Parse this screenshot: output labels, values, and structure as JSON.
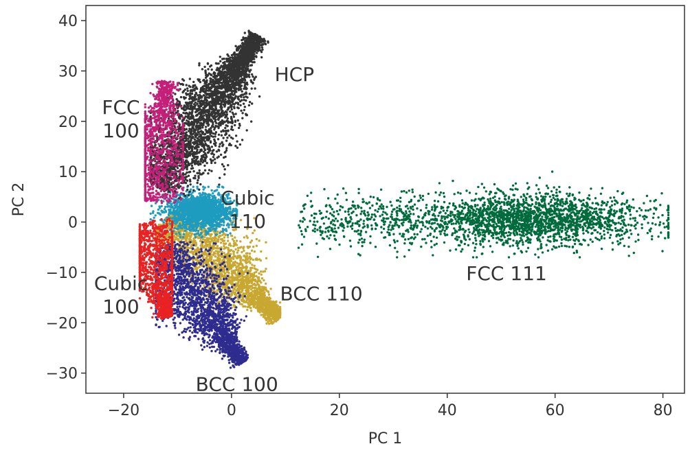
{
  "chart_data": {
    "type": "scatter",
    "title": "",
    "xlabel": "PC 1",
    "ylabel": "PC 2",
    "xlim": [
      -27,
      84
    ],
    "ylim": [
      -34,
      43
    ],
    "xticks": [
      -20,
      0,
      20,
      40,
      60,
      80
    ],
    "yticks": [
      -30,
      -20,
      -10,
      0,
      10,
      20,
      30,
      40
    ],
    "xtick_labels": [
      "−20",
      "0",
      "20",
      "40",
      "60",
      "80"
    ],
    "ytick_labels": [
      "−30",
      "−20",
      "−10",
      "0",
      "10",
      "20",
      "30",
      "40"
    ],
    "grid": false,
    "series": [
      {
        "color": "#006b3c",
        "count": 2600,
        "shape": "ellipse",
        "center": [
          55,
          0.5
        ],
        "x_range": [
          10,
          81
        ],
        "y_range": [
          -7,
          10
        ],
        "label_lines": [
          "FCC 111"
        ]
      },
      {
        "color": "#c8a831",
        "count": 2400,
        "shape": "band",
        "start": [
          -12,
          1
        ],
        "end": [
          9,
          -19
        ],
        "x_range": [
          -14,
          9
        ],
        "y_range": [
          -21,
          2
        ],
        "label_lines": [
          "BCC 110"
        ]
      },
      {
        "color": "#2e2c8f",
        "count": 2200,
        "shape": "band",
        "start": [
          -13,
          -5
        ],
        "end": [
          2,
          -28
        ],
        "x_range": [
          -14,
          3
        ],
        "y_range": [
          -29,
          -4
        ],
        "label_lines": [
          "BCC 100"
        ]
      },
      {
        "color": "#1e9cc0",
        "count": 1600,
        "shape": "ellipse",
        "center": [
          -6,
          2
        ],
        "x_range": [
          -15,
          1
        ],
        "y_range": [
          -3,
          7
        ],
        "label_lines": [
          "Cubic",
          "110"
        ]
      },
      {
        "color": "#333333",
        "count": 3400,
        "shape": "band",
        "start": [
          -14,
          7
        ],
        "end": [
          5,
          37
        ],
        "x_range": [
          -15,
          10
        ],
        "y_range": [
          4,
          38
        ],
        "label_lines": [
          "HCP"
        ]
      },
      {
        "color": "#c42079",
        "count": 1200,
        "shape": "band",
        "start": [
          -15,
          4
        ],
        "end": [
          -12,
          28
        ],
        "x_range": [
          -16,
          -9
        ],
        "y_range": [
          3,
          28
        ],
        "label_lines": [
          "FCC",
          "100"
        ]
      },
      {
        "color": "#e82323",
        "count": 1400,
        "shape": "band",
        "start": [
          -16,
          0
        ],
        "end": [
          -12,
          -19
        ],
        "x_range": [
          -17,
          -11
        ],
        "y_range": [
          -20,
          1
        ],
        "label_lines": [
          "Cubic",
          "100"
        ]
      }
    ],
    "annotations": [
      {
        "text_lines": [
          "HCP"
        ],
        "x": 8,
        "y": 28,
        "anchor": "start"
      },
      {
        "text_lines": [
          "FCC",
          "100"
        ],
        "x": -20.5,
        "y": 21.5,
        "anchor": "middle"
      },
      {
        "text_lines": [
          "Cubic",
          "110"
        ],
        "x": 3,
        "y": 3.5,
        "anchor": "middle"
      },
      {
        "text_lines": [
          "FCC 111"
        ],
        "x": 51,
        "y": -11.5,
        "anchor": "middle"
      },
      {
        "text_lines": [
          "BCC 110"
        ],
        "x": 9,
        "y": -15.5,
        "anchor": "start"
      },
      {
        "text_lines": [
          "Cubic",
          "100"
        ],
        "x": -20.5,
        "y": -13.5,
        "anchor": "middle"
      },
      {
        "text_lines": [
          "BCC 100"
        ],
        "x": 1,
        "y": -33.5,
        "anchor": "middle"
      }
    ]
  }
}
